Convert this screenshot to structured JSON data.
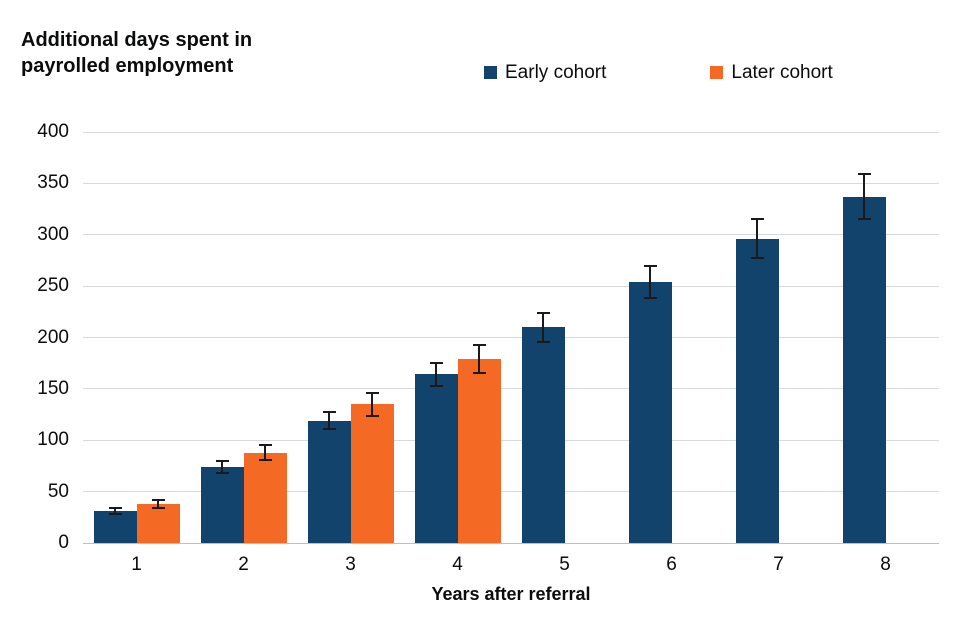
{
  "title": "Additional days spent in payrolled employment",
  "legend": {
    "items": [
      {
        "label": "Early cohort",
        "color": "#12436D"
      },
      {
        "label": "Later cohort",
        "color": "#F46A25"
      }
    ]
  },
  "colors": {
    "early_cohort": "#12436D",
    "later_cohort": "#F46A25",
    "gridline": "#d9d9d9",
    "error_bar": "#1a1a1a",
    "text": "#0b0c0c"
  },
  "chart_data": {
    "type": "bar",
    "title": "Additional days spent in payrolled employment",
    "xlabel": "Years after referral",
    "ylabel": "Additional days spent in payrolled employment",
    "categories": [
      "1",
      "2",
      "3",
      "4",
      "5",
      "6",
      "7",
      "8"
    ],
    "series": [
      {
        "name": "Early cohort",
        "color": "#12436D",
        "values": [
          31,
          74,
          119,
          164,
          210,
          254,
          296,
          337
        ],
        "error_margins": [
          4,
          7,
          9,
          12,
          15,
          17,
          20,
          23
        ]
      },
      {
        "name": "Later cohort",
        "color": "#F46A25",
        "values": [
          38,
          88,
          135,
          179,
          null,
          null,
          null,
          null
        ],
        "error_margins": [
          5,
          8,
          12,
          15,
          null,
          null,
          null,
          null
        ]
      }
    ],
    "ylim": [
      0,
      400
    ],
    "yticks": [
      0,
      50,
      100,
      150,
      200,
      250,
      300,
      350,
      400
    ],
    "grid": "horizontal",
    "error_bars": true,
    "legend_position": "top"
  }
}
